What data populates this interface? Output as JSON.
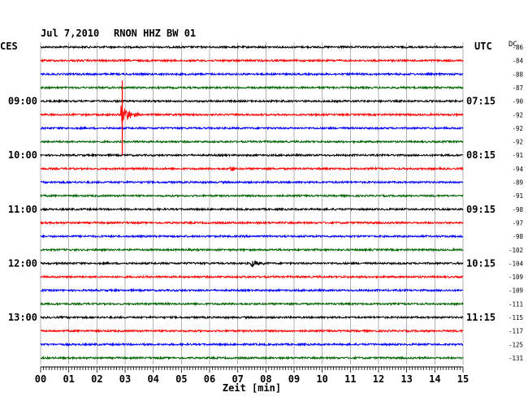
{
  "header": {
    "date": "Jul 7,2010",
    "station": "RNON HHZ BW 01",
    "left_tz": "CES",
    "right_tz": "UTC",
    "dc_label": "DC"
  },
  "xaxis": {
    "label": "Zeit [min]",
    "ticks": [
      "00",
      "01",
      "02",
      "03",
      "04",
      "05",
      "06",
      "07",
      "08",
      "09",
      "10",
      "11",
      "12",
      "13",
      "14",
      "15"
    ]
  },
  "colors": {
    "black": "#000000",
    "red": "#ff0000",
    "blue": "#0000ff",
    "green": "#006400",
    "grid": "#808080"
  },
  "chart_data": {
    "type": "line",
    "title": "Jul 7,2010   RNON HHZ BW 01",
    "xlabel": "Zeit [min]",
    "xlim": [
      0,
      15
    ],
    "trace_color_cycle": [
      "black",
      "red",
      "blue",
      "green"
    ],
    "left_time_labels": [
      {
        "trace": 4,
        "text": "09:00"
      },
      {
        "trace": 8,
        "text": "10:00"
      },
      {
        "trace": 12,
        "text": "11:00"
      },
      {
        "trace": 16,
        "text": "12:00"
      },
      {
        "trace": 20,
        "text": "13:00"
      }
    ],
    "right_time_labels": [
      {
        "trace": 4,
        "text": "07:15"
      },
      {
        "trace": 8,
        "text": "08:15"
      },
      {
        "trace": 12,
        "text": "09:15"
      },
      {
        "trace": 16,
        "text": "10:15"
      },
      {
        "trace": 20,
        "text": "11:15"
      }
    ],
    "dc_offsets": [
      "-86",
      "-84",
      "-88",
      "-87",
      "-90",
      "-92",
      "-92",
      "-92",
      "-91",
      "-94",
      "-89",
      "-91",
      "-98",
      "-97",
      "-98",
      "-102",
      "-104",
      "-109",
      "-109",
      "-111",
      "-115",
      "-117",
      "-125",
      "-131"
    ],
    "events": [
      {
        "trace": 5,
        "minute": 2.9,
        "kind": "large"
      },
      {
        "trace": 16,
        "minute": 7.5,
        "kind": "medium"
      },
      {
        "trace": 9,
        "minute": 6.8,
        "kind": "small"
      }
    ]
  }
}
